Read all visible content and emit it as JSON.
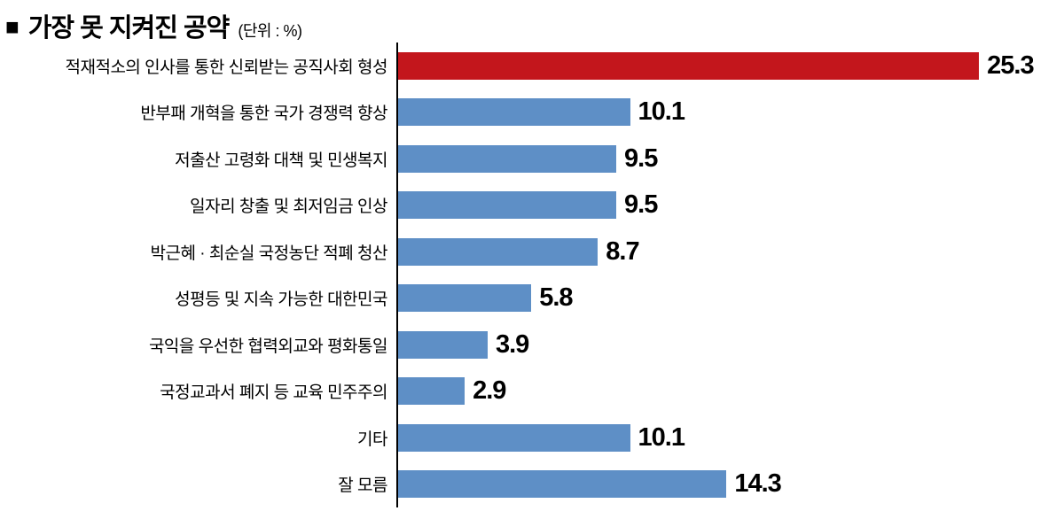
{
  "header": {
    "bullet": "■",
    "title": "가장 못 지켜진 공약",
    "unit": "(단위 : %)"
  },
  "chart_data": {
    "type": "bar",
    "orientation": "horizontal",
    "title": "가장 못 지켜진 공약",
    "unit": "%",
    "xlabel": "",
    "ylabel": "",
    "xlim": [
      0,
      29
    ],
    "grid": false,
    "legend": "none",
    "categories": [
      "적재적소의 인사를 통한 신뢰받는 공직사회 형성",
      "반부패 개혁을 통한 국가 경쟁력 향상",
      "저출산 고령화 대책 및 민생복지",
      "일자리 창출 및 최저임금 인상",
      "박근혜 · 최순실 국정농단 적폐 청산",
      "성평등 및 지속 가능한 대한민국",
      "국익을 우선한 협력외교와 평화통일",
      "국정교과서 폐지 등 교육 민주주의",
      "기타",
      "잘 모름"
    ],
    "values": [
      25.3,
      10.1,
      9.5,
      9.5,
      8.7,
      5.8,
      3.9,
      2.9,
      10.1,
      14.3
    ],
    "value_labels": [
      "25.3",
      "10.1",
      "9.5",
      "9.5",
      "8.7",
      "5.8",
      "3.9",
      "2.9",
      "10.1",
      "14.3"
    ],
    "highlight_index": 0,
    "highlight_color": "#c3161c",
    "bar_color": "#5e8fc6",
    "axis_color": "#000000"
  }
}
